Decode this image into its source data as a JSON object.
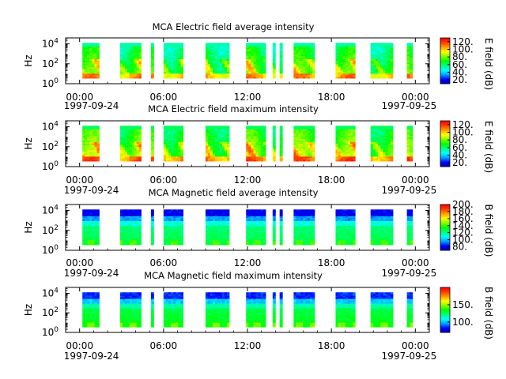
{
  "chart_data": [
    {
      "type": "heatmap",
      "title": "MCA  Electric field average intensity",
      "ylabel": "Hz",
      "y_scale": "log",
      "y_ticks": [
        {
          "exp": "0"
        },
        {
          "exp": "2"
        },
        {
          "exp": "4"
        }
      ],
      "x_ticks": [
        "00:00",
        "06:00",
        "12:00",
        "18:00",
        "00:00"
      ],
      "x_date_labels": [
        "1997-09-24",
        "1997-09-25"
      ],
      "colorbar": {
        "label": "E field (dB)",
        "range": [
          10,
          130
        ],
        "ticks": [
          "20.",
          "40.",
          "60.",
          "80.",
          "100.",
          "120."
        ],
        "tick_values": [
          20,
          40,
          60,
          80,
          100,
          120
        ]
      },
      "kind": "electric",
      "intensity": "average"
    },
    {
      "type": "heatmap",
      "title": "MCA  Electric field maximum intensity",
      "ylabel": "Hz",
      "y_scale": "log",
      "y_ticks": [
        {
          "exp": "0"
        },
        {
          "exp": "2"
        },
        {
          "exp": "4"
        }
      ],
      "x_ticks": [
        "00:00",
        "06:00",
        "12:00",
        "18:00",
        "00:00"
      ],
      "x_date_labels": [
        "1997-09-24",
        "1997-09-25"
      ],
      "colorbar": {
        "label": "E field (dB)",
        "range": [
          10,
          130
        ],
        "ticks": [
          "20.",
          "40.",
          "60.",
          "80.",
          "100.",
          "120."
        ],
        "tick_values": [
          20,
          40,
          60,
          80,
          100,
          120
        ]
      },
      "kind": "electric",
      "intensity": "maximum"
    },
    {
      "type": "heatmap",
      "title": "MCA  Magnetic field average intensity",
      "ylabel": "Hz",
      "y_scale": "log",
      "y_ticks": [
        {
          "exp": "0"
        },
        {
          "exp": "2"
        },
        {
          "exp": "4"
        }
      ],
      "x_ticks": [
        "00:00",
        "06:00",
        "12:00",
        "18:00",
        "00:00"
      ],
      "x_date_labels": [
        "1997-09-24",
        "1997-09-25"
      ],
      "colorbar": {
        "label": "B field (dB)",
        "range": [
          70,
          200
        ],
        "ticks": [
          "80.",
          "100.",
          "120.",
          "140.",
          "160.",
          "180.",
          "200."
        ],
        "tick_values": [
          80,
          100,
          120,
          140,
          160,
          180,
          200
        ]
      },
      "kind": "magnetic",
      "intensity": "average"
    },
    {
      "type": "heatmap",
      "title": "MCA  Magnetic field maximum intensity",
      "ylabel": "Hz",
      "y_scale": "log",
      "y_ticks": [
        {
          "exp": "0"
        },
        {
          "exp": "2"
        },
        {
          "exp": "4"
        }
      ],
      "x_ticks": [
        "00:00",
        "06:00",
        "12:00",
        "18:00",
        "00:00"
      ],
      "x_date_labels": [
        "1997-09-24",
        "1997-09-25"
      ],
      "colorbar": {
        "label": "B field (dB)",
        "range": [
          70,
          200
        ],
        "ticks": [
          "100.",
          "150."
        ],
        "tick_values": [
          100,
          150
        ]
      },
      "kind": "magnetic",
      "intensity": "maximum"
    }
  ],
  "data_segments_hours": [
    [
      0.2,
      1.4
    ],
    [
      2.9,
      4.4
    ],
    [
      5.1,
      5.3
    ],
    [
      6.0,
      7.4
    ],
    [
      9.0,
      10.7
    ],
    [
      11.9,
      13.3
    ],
    [
      13.8,
      14.0
    ],
    [
      14.3,
      14.5
    ],
    [
      15.3,
      16.8
    ],
    [
      18.3,
      19.7
    ],
    [
      20.8,
      22.4
    ],
    [
      23.4,
      23.8
    ]
  ],
  "colors": {
    "colormap": [
      "#0000b0",
      "#0000ff",
      "#00a0ff",
      "#00ffff",
      "#00ff80",
      "#00ff00",
      "#80ff00",
      "#ffff00",
      "#ffa000",
      "#ff4000",
      "#ff0000"
    ]
  }
}
